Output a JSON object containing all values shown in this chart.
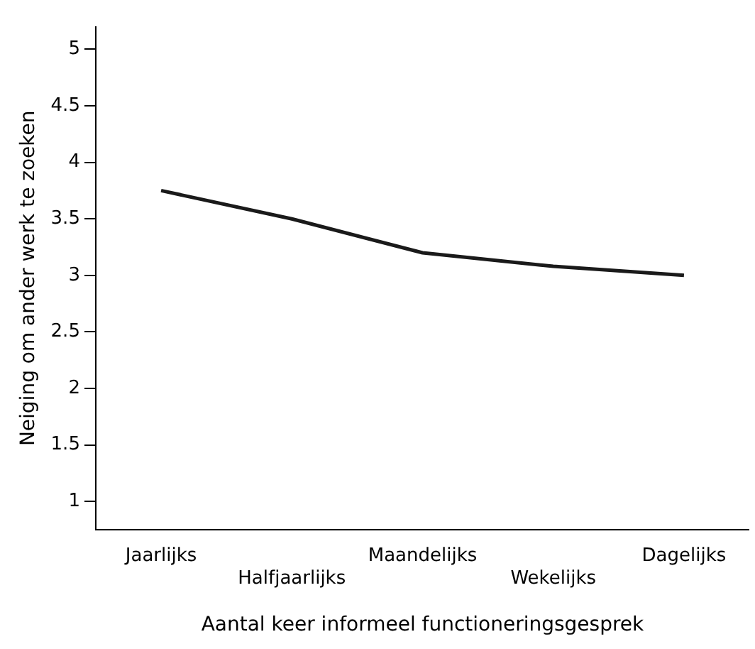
{
  "chart_data": {
    "type": "line",
    "xlabel": "Aantal keer informeel functioneringsgesprek",
    "ylabel": "Neiging om ander werk te zoeken",
    "categories": [
      "Jaarlijks",
      "Halfjaarlijks",
      "Maandelijks",
      "Wekelijks",
      "Dagelijks"
    ],
    "series": [
      {
        "color": "#1a1a1a",
        "values": [
          3.75,
          3.5,
          3.2,
          3.08,
          3.0
        ]
      }
    ],
    "ylim": [
      0.75,
      5.2
    ],
    "yticks": [
      1,
      1.5,
      2,
      2.5,
      3,
      3.5,
      4,
      4.5,
      5
    ],
    "grid": false,
    "legend": false,
    "marker": "none",
    "line_style": "solid"
  }
}
